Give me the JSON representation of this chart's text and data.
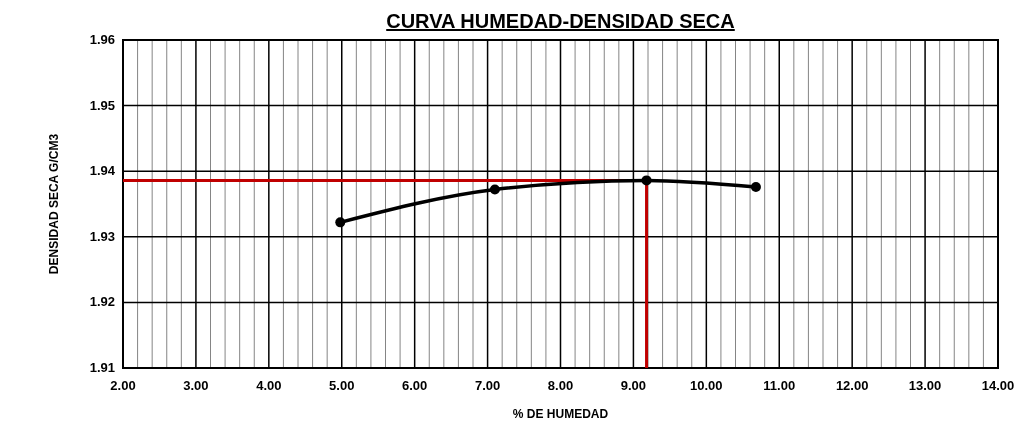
{
  "chart_data": {
    "type": "line",
    "title": "CURVA HUMEDAD-DENSIDAD SECA",
    "xlabel": "% DE HUMEDAD",
    "ylabel": "DENSIDAD SECA G/CM3",
    "x": [
      4.98,
      7.1,
      9.18,
      10.68
    ],
    "series": [
      {
        "color": "#000000",
        "values": [
          1.9322,
          1.9372,
          1.9386,
          1.9376
        ]
      }
    ],
    "xlim": [
      2,
      14
    ],
    "ylim": [
      1.91,
      1.96
    ],
    "xticks": [
      {
        "value": 2,
        "label": "2.00"
      },
      {
        "value": 2.2,
        "label": null
      },
      {
        "value": 2.4,
        "label": null
      },
      {
        "value": 2.6,
        "label": null
      },
      {
        "value": 2.8,
        "label": null
      },
      {
        "value": 3,
        "label": "3.00"
      },
      {
        "value": 3.2,
        "label": null
      },
      {
        "value": 3.4,
        "label": null
      },
      {
        "value": 3.6,
        "label": null
      },
      {
        "value": 3.8,
        "label": null
      },
      {
        "value": 4,
        "label": "4.00"
      },
      {
        "value": 4.2,
        "label": null
      },
      {
        "value": 4.4,
        "label": null
      },
      {
        "value": 4.6,
        "label": null
      },
      {
        "value": 4.8,
        "label": null
      },
      {
        "value": 5,
        "label": "5.00"
      },
      {
        "value": 5.2,
        "label": null
      },
      {
        "value": 5.4,
        "label": null
      },
      {
        "value": 5.6,
        "label": null
      },
      {
        "value": 5.8,
        "label": null
      },
      {
        "value": 6,
        "label": "6.00"
      },
      {
        "value": 6.2,
        "label": null
      },
      {
        "value": 6.4,
        "label": null
      },
      {
        "value": 6.6,
        "label": null
      },
      {
        "value": 6.8,
        "label": null
      },
      {
        "value": 7,
        "label": "7.00"
      },
      {
        "value": 7.2,
        "label": null
      },
      {
        "value": 7.4,
        "label": null
      },
      {
        "value": 7.6,
        "label": null
      },
      {
        "value": 7.8,
        "label": null
      },
      {
        "value": 8,
        "label": "8.00"
      },
      {
        "value": 8.2,
        "label": null
      },
      {
        "value": 8.4,
        "label": null
      },
      {
        "value": 8.6,
        "label": null
      },
      {
        "value": 8.8,
        "label": null
      },
      {
        "value": 9,
        "label": "9.00"
      },
      {
        "value": 9.2,
        "label": null
      },
      {
        "value": 9.4,
        "label": null
      },
      {
        "value": 9.6,
        "label": null
      },
      {
        "value": 9.8,
        "label": null
      },
      {
        "value": 10,
        "label": "10.00"
      },
      {
        "value": 10.2,
        "label": null
      },
      {
        "value": 10.4,
        "label": null
      },
      {
        "value": 10.6,
        "label": null
      },
      {
        "value": 10.8,
        "label": null
      },
      {
        "value": 11,
        "label": "11.00"
      },
      {
        "value": 11.2,
        "label": null
      },
      {
        "value": 11.4,
        "label": null
      },
      {
        "value": 11.6,
        "label": null
      },
      {
        "value": 11.8,
        "label": null
      },
      {
        "value": 12,
        "label": "12.00"
      },
      {
        "value": 12.2,
        "label": null
      },
      {
        "value": 12.4,
        "label": null
      },
      {
        "value": 12.6,
        "label": null
      },
      {
        "value": 12.8,
        "label": null
      },
      {
        "value": 13,
        "label": "13.00"
      },
      {
        "value": 13.2,
        "label": null
      },
      {
        "value": 13.4,
        "label": null
      },
      {
        "value": 13.6,
        "label": null
      },
      {
        "value": 13.8,
        "label": null
      },
      {
        "value": 14,
        "label": "14.00"
      }
    ],
    "yticks": [
      1.91,
      1.92,
      1.93,
      1.94,
      1.95,
      1.96
    ],
    "ref_lines": [
      {
        "axis": "x",
        "value": 9.18,
        "color": "#c00000"
      },
      {
        "axis": "y",
        "value": 1.9386,
        "color": "#c00000"
      }
    ],
    "grid": true,
    "marker": "circle",
    "line_style": "solid"
  }
}
